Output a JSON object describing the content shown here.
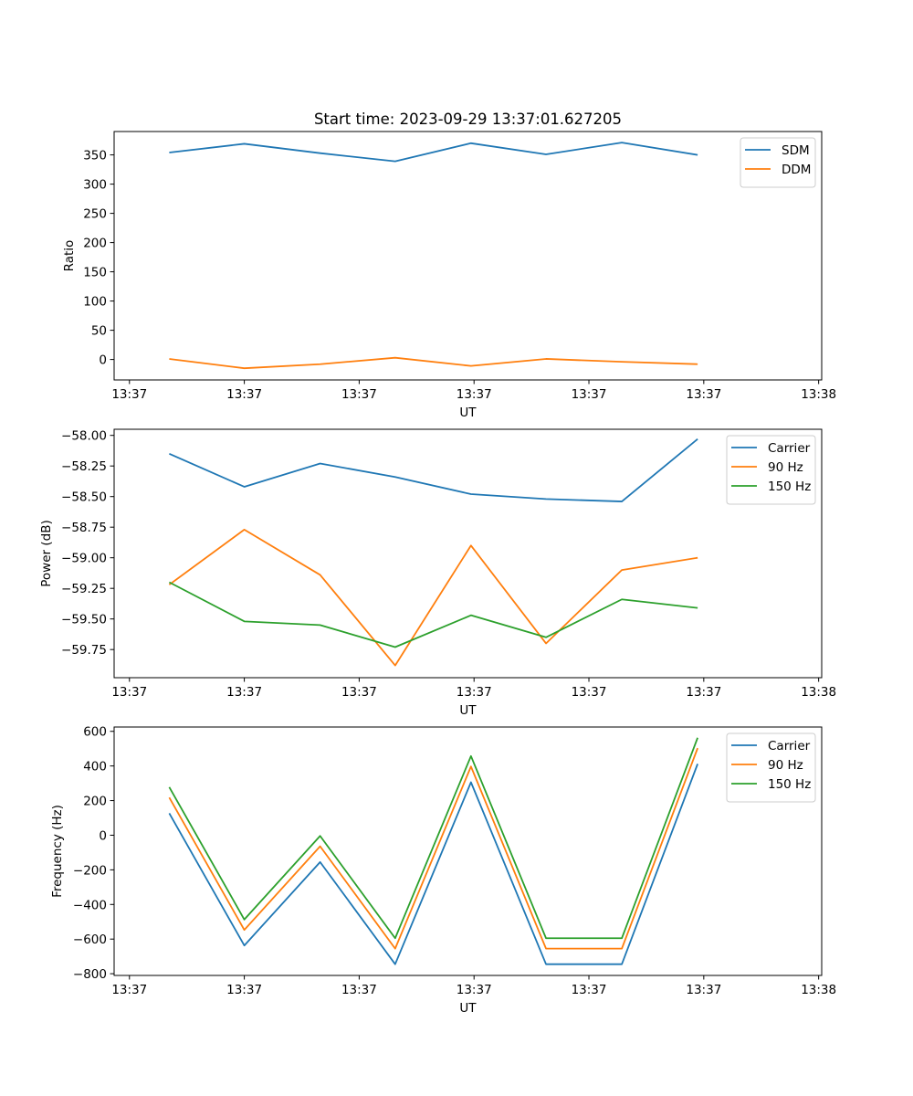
{
  "figure_title": "Start time: 2023-09-29 13:37:01.627205",
  "colors": {
    "blue": "#1f77b4",
    "orange": "#ff7f0e",
    "green": "#2ca02c"
  },
  "chart_data": [
    {
      "type": "line",
      "xlabel": "UT",
      "ylabel": "Ratio",
      "xlim": [
        -0.2,
        9.04
      ],
      "ylim": [
        -35,
        390
      ],
      "xticks": [
        0,
        1.5,
        3,
        4.5,
        6,
        7.5,
        9
      ],
      "xtick_labels": [
        "13:37",
        "13:37",
        "13:37",
        "13:37",
        "13:37",
        "13:37",
        "13:38"
      ],
      "yticks": [
        0,
        50,
        100,
        150,
        200,
        250,
        300,
        350
      ],
      "ytick_labels": [
        "0",
        "50",
        "100",
        "150",
        "200",
        "250",
        "300",
        "350"
      ],
      "x": [
        0.52,
        1.5,
        2.49,
        3.47,
        4.46,
        5.44,
        6.43,
        7.42
      ],
      "legend_position": "top-right",
      "series": [
        {
          "name": "SDM",
          "color_key": "blue",
          "values": [
            354,
            369,
            353,
            339,
            370,
            351,
            371,
            350
          ]
        },
        {
          "name": "DDM",
          "color_key": "orange",
          "values": [
            1,
            -15,
            -8,
            3,
            -11,
            1,
            -4,
            -8
          ]
        }
      ]
    },
    {
      "type": "line",
      "xlabel": "UT",
      "ylabel": "Power (dB)",
      "xlim": [
        -0.2,
        9.04
      ],
      "ylim": [
        -59.98,
        -57.95
      ],
      "xticks": [
        0,
        1.5,
        3,
        4.5,
        6,
        7.5,
        9
      ],
      "xtick_labels": [
        "13:37",
        "13:37",
        "13:37",
        "13:37",
        "13:37",
        "13:37",
        "13:38"
      ],
      "yticks": [
        -59.75,
        -59.5,
        -59.25,
        -59.0,
        -58.75,
        -58.5,
        -58.25,
        -58.0
      ],
      "ytick_labels": [
        "−59.75",
        "−59.50",
        "−59.25",
        "−59.00",
        "−58.75",
        "−58.50",
        "−58.25",
        "−58.00"
      ],
      "x": [
        0.52,
        1.5,
        2.49,
        3.47,
        4.46,
        5.44,
        6.43,
        7.42
      ],
      "legend_position": "top-right",
      "series": [
        {
          "name": "Carrier",
          "color_key": "blue",
          "values": [
            -58.15,
            -58.42,
            -58.23,
            -58.34,
            -58.48,
            -58.52,
            -58.54,
            -58.03
          ]
        },
        {
          "name": "90 Hz",
          "color_key": "orange",
          "values": [
            -59.22,
            -58.77,
            -59.14,
            -59.88,
            -58.9,
            -59.7,
            -59.1,
            -59.0
          ]
        },
        {
          "name": "150 Hz",
          "color_key": "green",
          "values": [
            -59.2,
            -59.52,
            -59.55,
            -59.73,
            -59.47,
            -59.65,
            -59.34,
            -59.41
          ]
        }
      ]
    },
    {
      "type": "line",
      "xlabel": "UT",
      "ylabel": "Frequency (Hz)",
      "xlim": [
        -0.2,
        9.04
      ],
      "ylim": [
        -810,
        625
      ],
      "xticks": [
        0,
        1.5,
        3,
        4.5,
        6,
        7.5,
        9
      ],
      "xtick_labels": [
        "13:37",
        "13:37",
        "13:37",
        "13:37",
        "13:37",
        "13:37",
        "13:38"
      ],
      "yticks": [
        -800,
        -600,
        -400,
        -200,
        0,
        200,
        400,
        600
      ],
      "ytick_labels": [
        "−800",
        "−600",
        "−400",
        "−200",
        "0",
        "200",
        "400",
        "600"
      ],
      "x": [
        0.52,
        1.5,
        2.49,
        3.47,
        4.46,
        5.44,
        6.43,
        7.42
      ],
      "legend_position": "top-right",
      "series": [
        {
          "name": "Carrier",
          "color_key": "blue",
          "values": [
            127,
            -637,
            -155,
            -745,
            306,
            -745,
            -745,
            412
          ]
        },
        {
          "name": "90 Hz",
          "color_key": "orange",
          "values": [
            218,
            -547,
            -64,
            -655,
            397,
            -655,
            -655,
            503
          ]
        },
        {
          "name": "150 Hz",
          "color_key": "green",
          "values": [
            278,
            -487,
            -4,
            -595,
            457,
            -595,
            -595,
            563
          ]
        }
      ]
    }
  ]
}
